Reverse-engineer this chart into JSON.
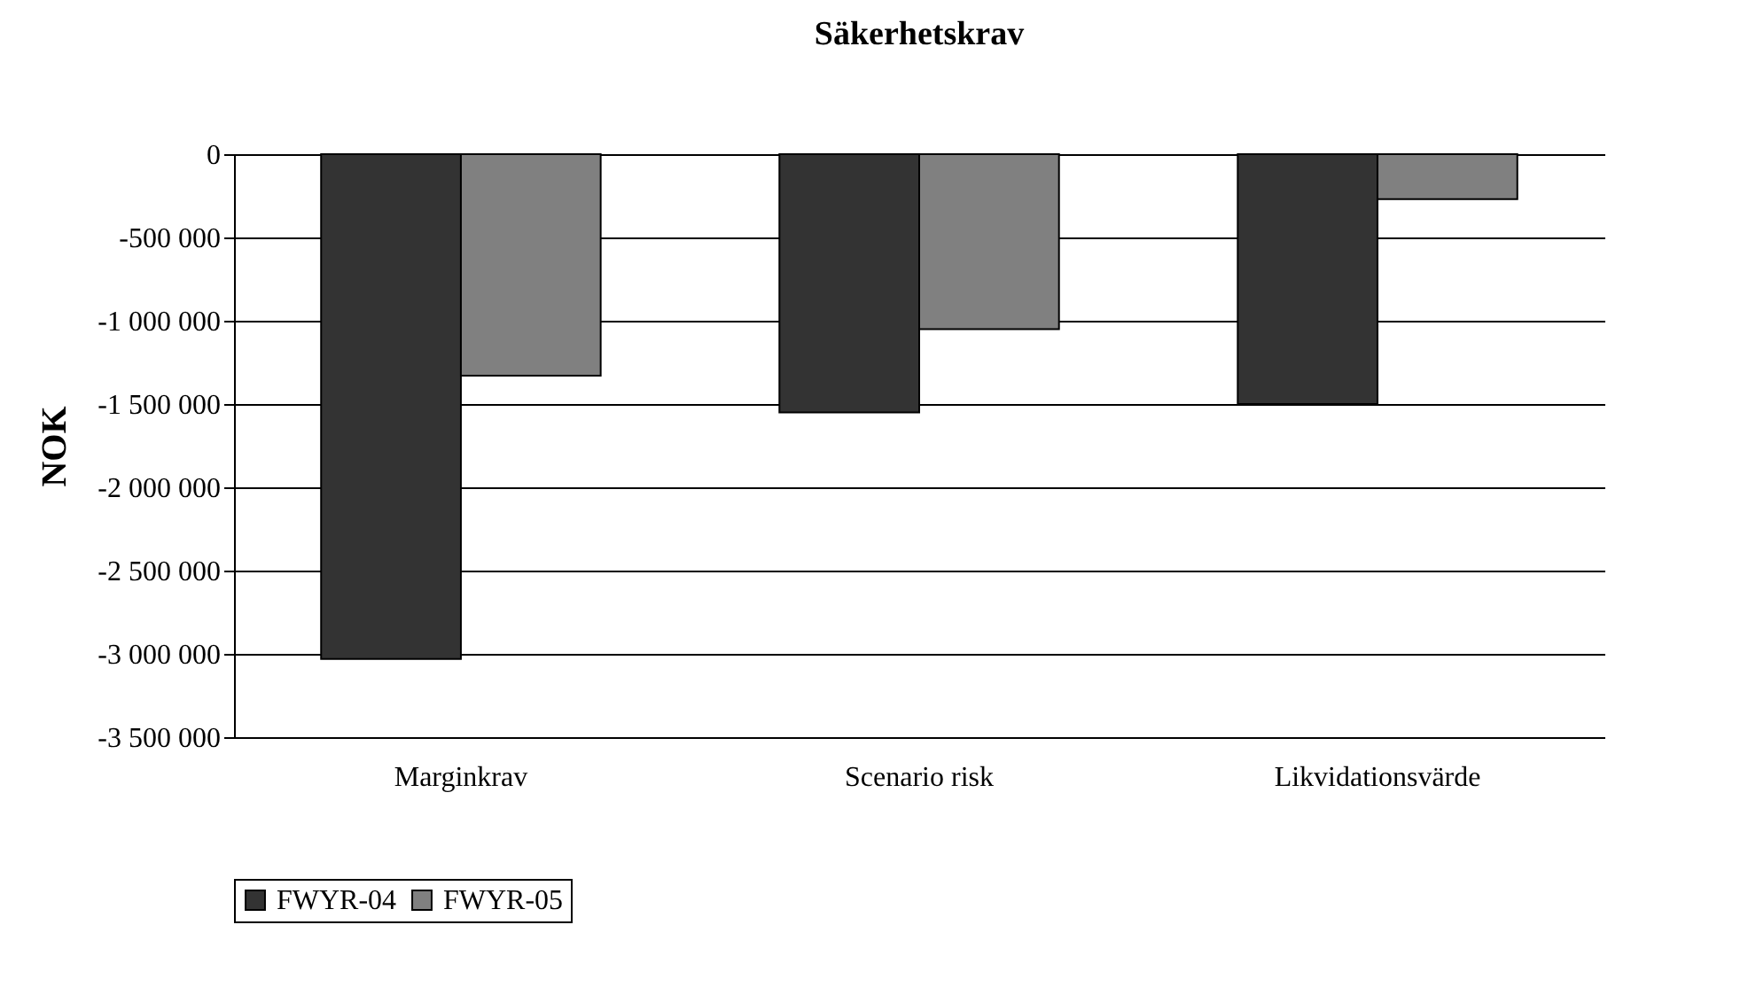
{
  "chart_data": {
    "type": "bar",
    "title": "Säkerhetskrav",
    "ylabel": "NOK",
    "categories": [
      "Marginkrav",
      "Scenario risk",
      "Likvidationsvärde"
    ],
    "series": [
      {
        "name": "FWYR-04",
        "color": "#333333",
        "values": [
          -3030000,
          -1550000,
          -1500000
        ]
      },
      {
        "name": "FWYR-05",
        "color": "#808080",
        "values": [
          -1330000,
          -1050000,
          -270000
        ]
      }
    ],
    "ylim": [
      -3500000,
      0
    ],
    "yticks": [
      {
        "value": -3500000,
        "label": "-3 500 000"
      },
      {
        "value": -3000000,
        "label": "-3 000 000"
      },
      {
        "value": -2500000,
        "label": "-2 500 000"
      },
      {
        "value": -2000000,
        "label": "-2 000 000"
      },
      {
        "value": -1500000,
        "label": "-1 500 000"
      },
      {
        "value": -1000000,
        "label": "-1 000 000"
      },
      {
        "value": -500000,
        "label": "-500 000"
      },
      {
        "value": 0,
        "label": "0"
      }
    ],
    "grid": "y",
    "legend": "bottom"
  }
}
